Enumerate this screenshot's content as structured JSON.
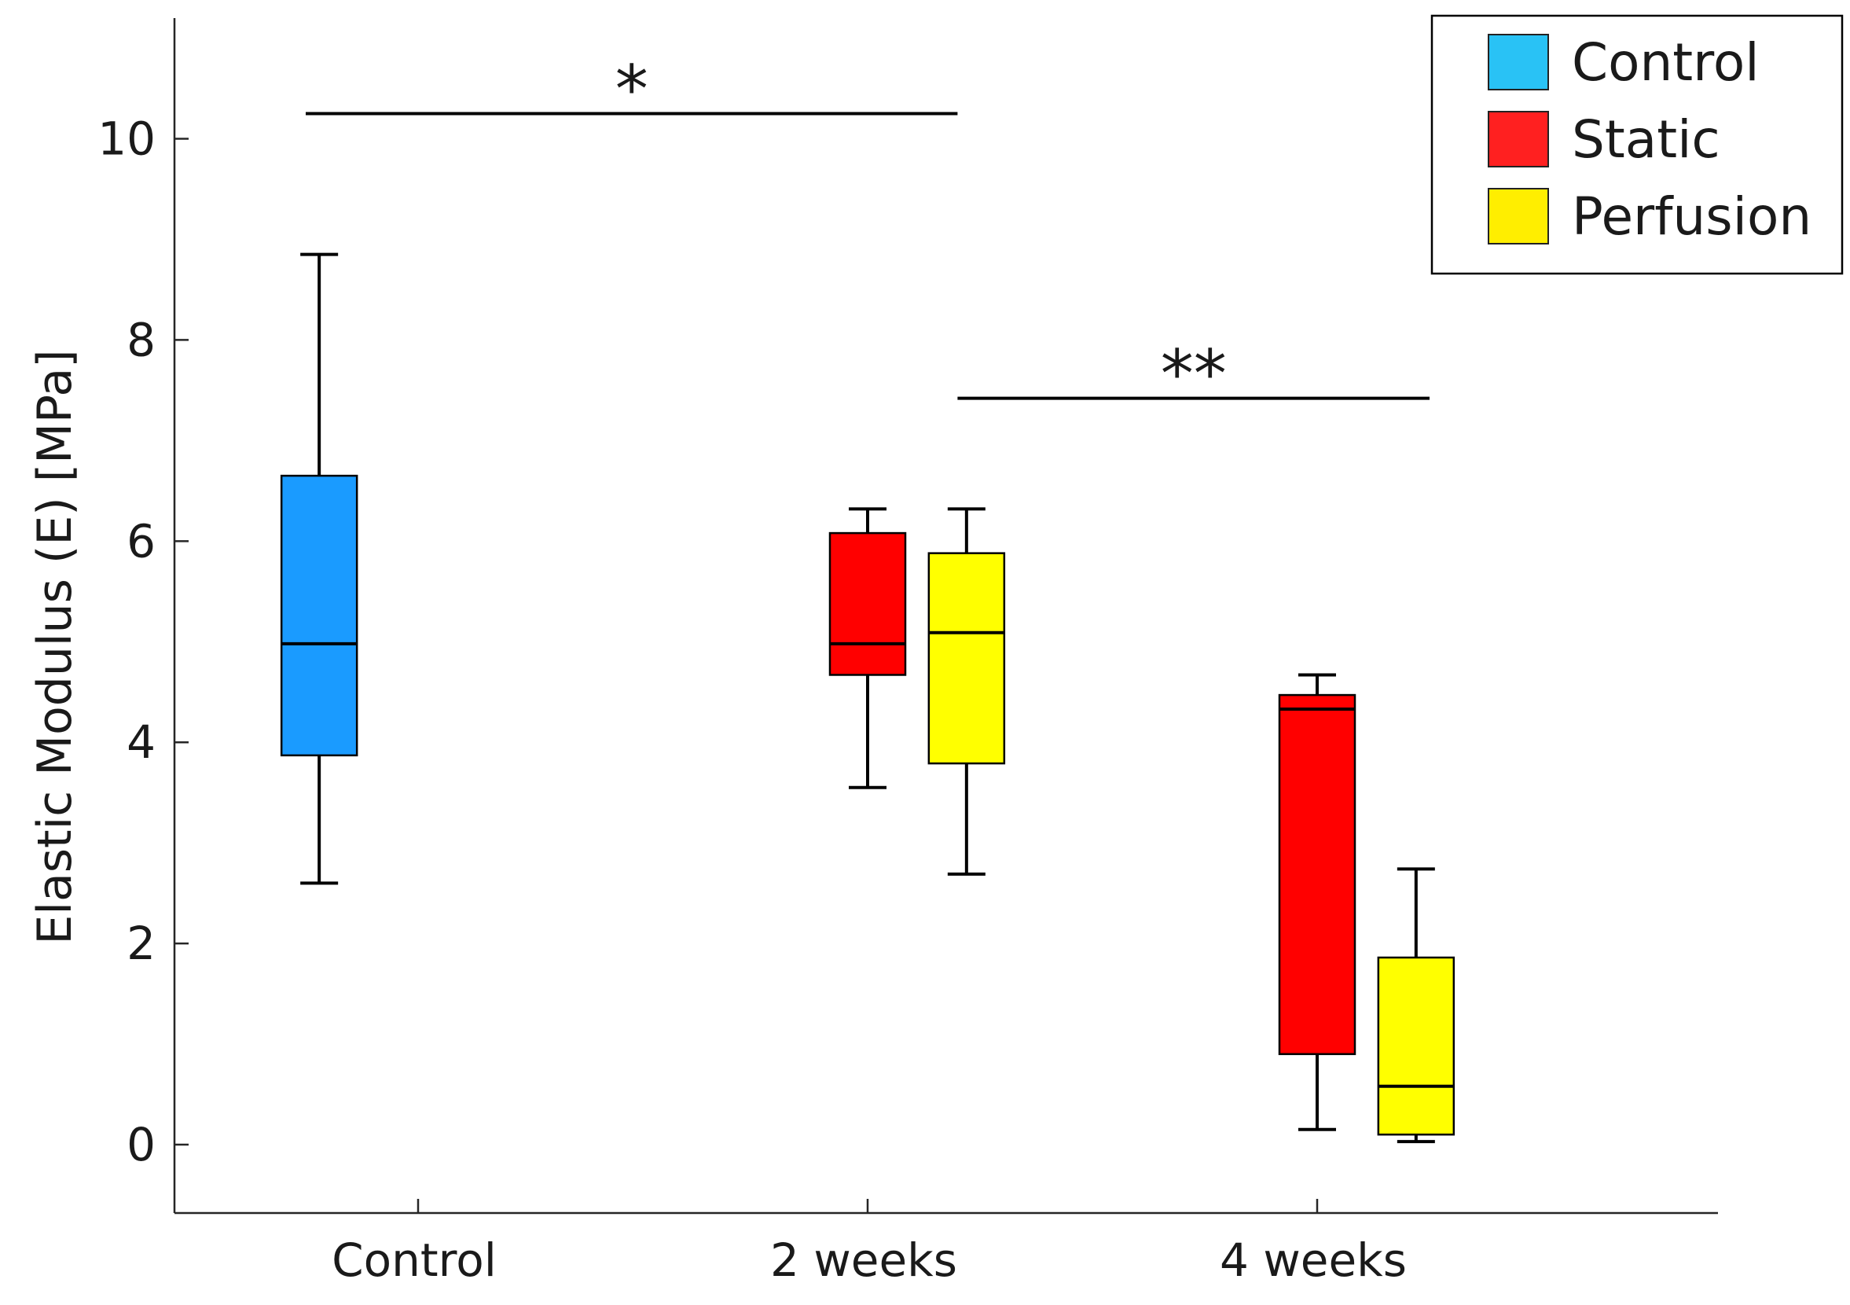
{
  "chart_data": {
    "type": "box",
    "title": "",
    "xlabel": "",
    "ylabel": "Elastic Modulus (E) [MPa]",
    "ylim": [
      -0.68,
      11.2
    ],
    "yticks": [
      0,
      2,
      4,
      6,
      8,
      10
    ],
    "categories": [
      "Control",
      "2 weeks",
      "4 weeks"
    ],
    "series": [
      {
        "name": "Control",
        "color": "#1a9bff",
        "legend_color": "#29c2f5"
      },
      {
        "name": "Static",
        "color": "#ff0000",
        "legend_color": "#ff2020"
      },
      {
        "name": "Perfusion",
        "color": "#ffff00",
        "legend_color": "#ffee00"
      }
    ],
    "boxes": [
      {
        "category": "Control",
        "series": "Control",
        "offset": -0.22,
        "min": 2.6,
        "q1": 3.87,
        "median": 4.98,
        "q3": 6.65,
        "max": 8.85
      },
      {
        "category": "2 weeks",
        "series": "Static",
        "offset": 0.0,
        "min": 3.55,
        "q1": 4.67,
        "median": 4.98,
        "q3": 6.08,
        "max": 6.32
      },
      {
        "category": "2 weeks",
        "series": "Perfusion",
        "offset": 0.22,
        "min": 2.69,
        "q1": 3.79,
        "median": 5.09,
        "q3": 5.88,
        "max": 6.32
      },
      {
        "category": "4 weeks",
        "series": "Static",
        "offset": 0.0,
        "min": 0.15,
        "q1": 0.9,
        "median": 4.33,
        "q3": 4.47,
        "max": 4.67
      },
      {
        "category": "4 weeks",
        "series": "Perfusion",
        "offset": 0.22,
        "min": 0.03,
        "q1": 0.1,
        "median": 0.58,
        "q3": 1.86,
        "max": 2.74
      }
    ],
    "significance": [
      {
        "label": "*",
        "y": 10.25,
        "from": {
          "category": "Control",
          "offset": -0.25
        },
        "to": {
          "category": "2 weeks",
          "offset": 0.2
        }
      },
      {
        "label": "**",
        "y": 7.42,
        "from": {
          "category": "2 weeks",
          "offset": 0.2
        },
        "to": {
          "category": "4 weeks",
          "offset": 0.25
        }
      }
    ],
    "legend": {
      "position": "top-right",
      "entries": [
        "Control",
        "Static",
        "Perfusion"
      ]
    },
    "grid": false
  }
}
